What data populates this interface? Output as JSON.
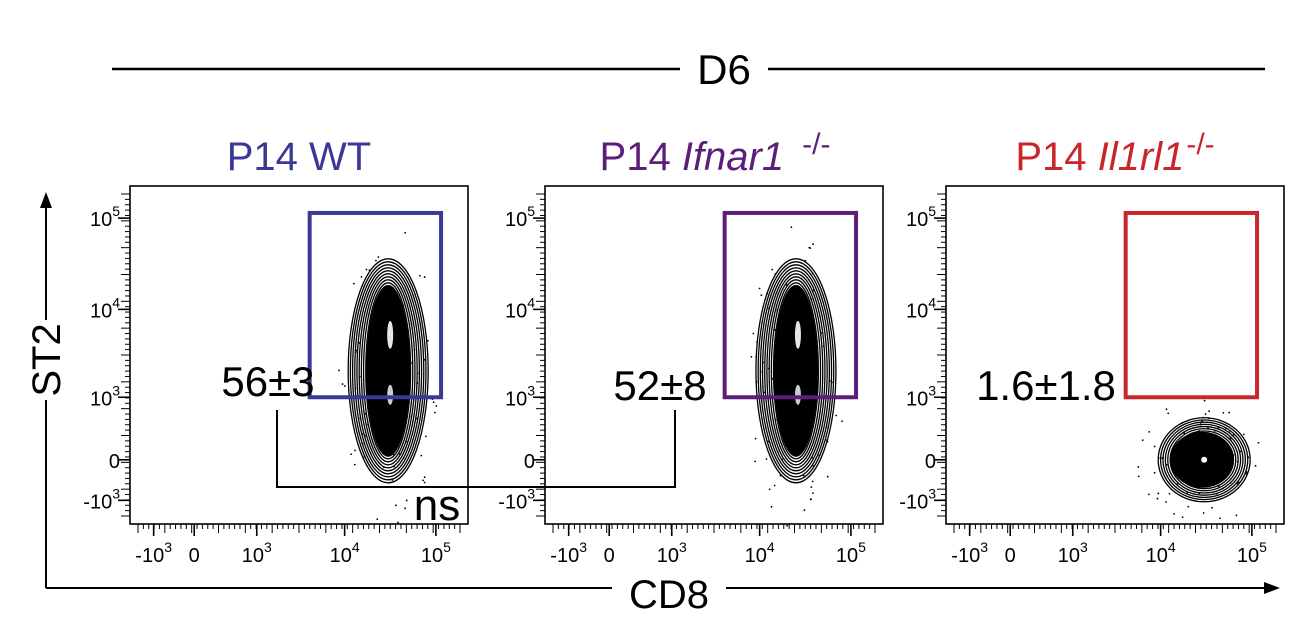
{
  "timepoint_label": "D6",
  "x_axis_label": "CD8",
  "y_axis_label": "ST2",
  "significance": {
    "label": "ns",
    "compared_panels": [
      0,
      1
    ]
  },
  "axis_ticks": [
    {
      "base": "-10",
      "exp": "3",
      "value": -1000
    },
    {
      "base": "0",
      "exp": "",
      "value": 0
    },
    {
      "base": "10",
      "exp": "3",
      "value": 1000
    },
    {
      "base": "10",
      "exp": "4",
      "value": 10000
    },
    {
      "base": "10",
      "exp": "5",
      "value": 100000
    }
  ],
  "chart_data": [
    {
      "type": "scatter",
      "subtype": "flow-cytometry-contour",
      "title": {
        "prefix": "P14 ",
        "italic": "",
        "suffix": "WT"
      },
      "title_color": "#3a3a96",
      "gate_color": "#3a3a96",
      "gate": {
        "x_min": 4000,
        "x_max": 110000,
        "y_min": 1000,
        "y_max": 110000
      },
      "gate_percent": "56±3",
      "population": {
        "center_cd8": 30000,
        "center_st2": 1800,
        "shape": "vertical"
      }
    },
    {
      "type": "scatter",
      "subtype": "flow-cytometry-contour",
      "title": {
        "prefix": "P14 ",
        "italic": "Ifnar1",
        "suffix": "-/-"
      },
      "title_color": "#5b1f7a",
      "gate_color": "#5b1f7a",
      "gate": {
        "x_min": 4000,
        "x_max": 110000,
        "y_min": 1000,
        "y_max": 110000
      },
      "gate_percent": "52±8",
      "population": {
        "center_cd8": 25000,
        "center_st2": 1800,
        "shape": "vertical"
      }
    },
    {
      "type": "scatter",
      "subtype": "flow-cytometry-contour",
      "title": {
        "prefix": "P14 ",
        "italic": "Il1rl1",
        "suffix": "-/-"
      },
      "title_color": "#c8262b",
      "gate_color": "#c8262b",
      "gate": {
        "x_min": 4000,
        "x_max": 110000,
        "y_min": 1000,
        "y_max": 110000
      },
      "gate_percent": "1.6±1.8",
      "population": {
        "center_cd8": 30000,
        "center_st2": 0,
        "shape": "round"
      }
    }
  ]
}
